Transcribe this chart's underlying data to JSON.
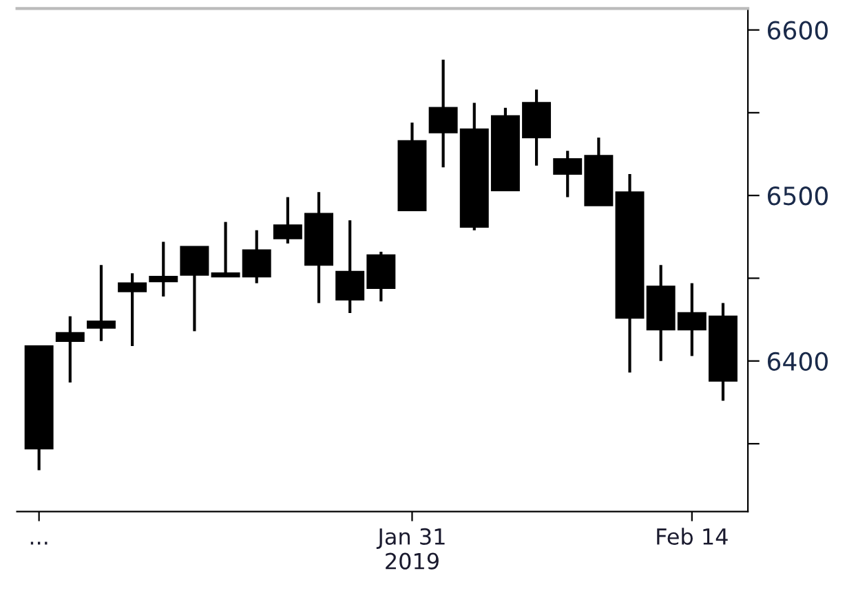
{
  "chart_data": {
    "type": "candlestick",
    "categories": [
      null,
      "...",
      null,
      null,
      null,
      null,
      null,
      null,
      null,
      null,
      null,
      null,
      null,
      "Jan 31\n2019",
      null,
      null,
      null,
      null,
      null,
      null,
      null,
      null,
      "Feb 14",
      null
    ],
    "ohlc": [
      null,
      [
        6409,
        6409,
        6334,
        6347
      ],
      [
        6417,
        6427,
        6387,
        6412
      ],
      [
        6424,
        6458,
        6412,
        6420
      ],
      [
        6447,
        6453,
        6409,
        6442
      ],
      [
        6451,
        6472,
        6439,
        6448
      ],
      [
        6469,
        6469,
        6418,
        6452
      ],
      [
        6453,
        6484,
        6451,
        6451
      ],
      [
        6467,
        6479,
        6447,
        6451
      ],
      [
        6482,
        6499,
        6471,
        6474
      ],
      [
        6489,
        6502,
        6435,
        6458
      ],
      [
        6454,
        6485,
        6429,
        6437
      ],
      [
        6464,
        6466,
        6436,
        6444
      ],
      [
        6533,
        6544,
        6491,
        6491
      ],
      [
        6553,
        6582,
        6517,
        6538
      ],
      [
        6540,
        6556,
        6479,
        6481
      ],
      [
        6548,
        6553,
        6503,
        6503
      ],
      [
        6556,
        6564,
        6518,
        6535
      ],
      [
        6522,
        6527,
        6499,
        6513
      ],
      [
        6524,
        6535,
        6494,
        6494
      ],
      [
        6502,
        6513,
        6393,
        6426
      ],
      [
        6445,
        6458,
        6400,
        6419
      ],
      [
        6429,
        6447,
        6403,
        6419
      ],
      [
        6427,
        6435,
        6376,
        6388
      ]
    ],
    "colors": [
      "#000000",
      "#000000",
      "#000000",
      "#000000",
      "#000000",
      "#000000",
      "#000000",
      "#000000",
      "#000000",
      "#000000",
      "#000000",
      "#000000",
      "#000000",
      "#000000",
      "#000000",
      "#000000",
      "#000000",
      "#000000",
      "#000000",
      "#000000",
      "#000000",
      "#000000",
      "#000000",
      "#000000"
    ],
    "ylim": [
      6309,
      6613
    ],
    "yticks": [
      {
        "value": 6350,
        "label": null
      },
      6400,
      {
        "value": 6450,
        "label": null
      },
      6500,
      {
        "value": 6550,
        "label": null
      },
      6600
    ],
    "grid": false
  }
}
